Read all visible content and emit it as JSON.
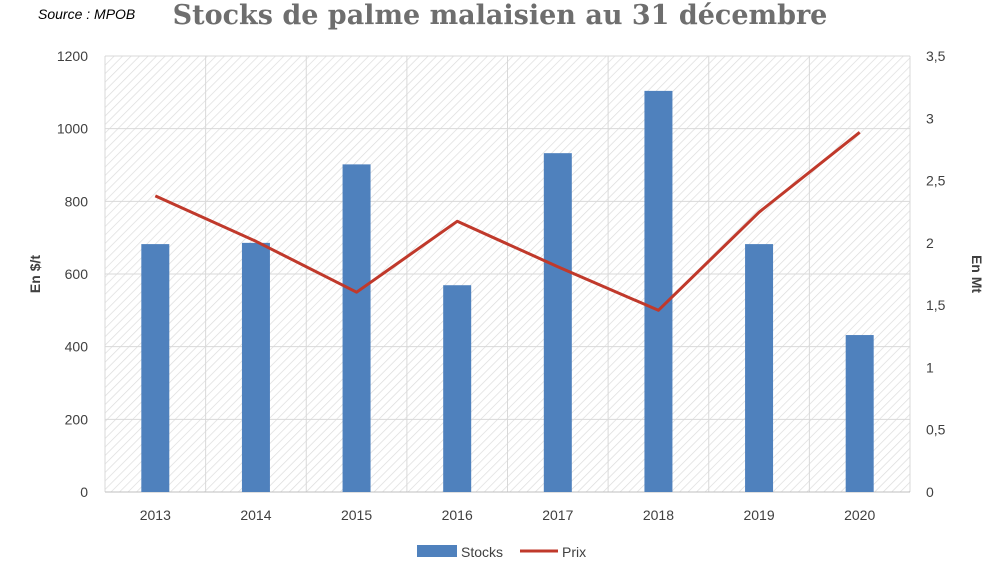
{
  "source_note": "Source : MPOB",
  "chart_data": {
    "type": "bar",
    "title": "Stocks de palme malaisien au 31 décembre",
    "categories": [
      "2013",
      "2014",
      "2015",
      "2016",
      "2017",
      "2018",
      "2019",
      "2020"
    ],
    "series": [
      {
        "name": "Stocks",
        "type": "bar",
        "axis": "right",
        "color": "#4f81bd",
        "values": [
          1.99,
          2.0,
          2.63,
          1.66,
          2.72,
          3.22,
          1.99,
          1.26
        ]
      },
      {
        "name": "Prix",
        "type": "line",
        "axis": "left",
        "color": "#c0392b",
        "values": [
          815,
          690,
          550,
          745,
          620,
          500,
          770,
          990
        ]
      }
    ],
    "y_left": {
      "label": "En $/t",
      "range": [
        0,
        1200
      ],
      "ticks": [
        "0",
        "200",
        "400",
        "600",
        "800",
        "1000",
        "1200"
      ]
    },
    "y_right": {
      "label": "En Mt",
      "range": [
        0,
        3.5
      ],
      "ticks": [
        "0",
        "0,5",
        "1",
        "1,5",
        "2",
        "2,5",
        "3",
        "3,5"
      ]
    },
    "grid": true,
    "legend_position": "bottom"
  }
}
